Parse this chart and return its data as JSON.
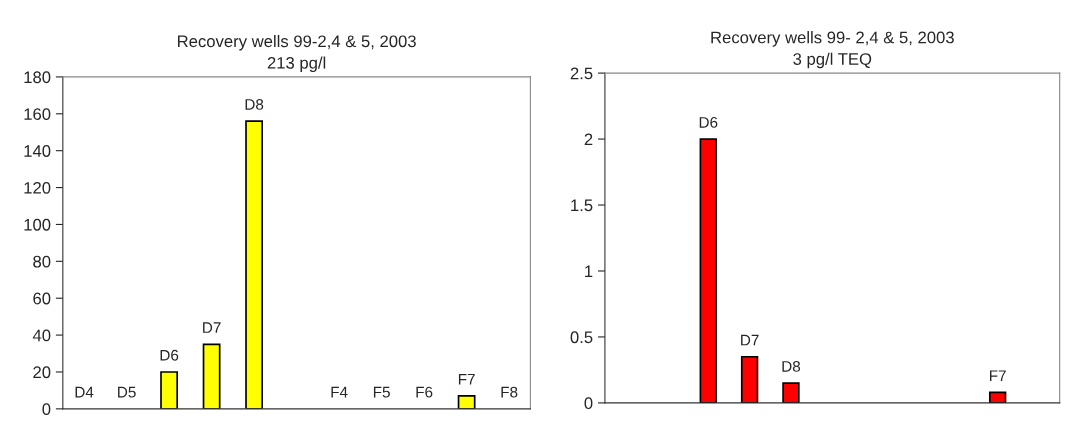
{
  "chart_data": [
    {
      "type": "bar",
      "title": "Recovery wells 99-2,4 & 5, 2003",
      "subtitle": "213 pg/l",
      "categories": [
        null,
        null,
        null,
        null,
        null,
        null,
        null,
        null,
        null,
        null,
        null
      ],
      "series": [
        {
          "color": "#ffff00",
          "values": [
            0,
            0,
            20,
            35,
            156,
            0,
            0,
            0,
            0,
            7,
            0
          ],
          "value_labels": [
            "D4",
            "D5",
            "D6",
            "D7",
            "D8",
            null,
            "F4",
            "F5",
            "F6",
            "F7",
            "F8"
          ]
        }
      ],
      "ylim": [
        0,
        180
      ],
      "yticks": [
        0,
        20,
        40,
        60,
        80,
        100,
        120,
        140,
        160,
        180
      ],
      "grid": false,
      "tick_labels": "y"
    },
    {
      "type": "bar",
      "title": "Recovery wells 99- 2,4 & 5, 2003",
      "subtitle": "3 pg/l TEQ",
      "categories": [
        null,
        null,
        null,
        null,
        null,
        null,
        null,
        null,
        null,
        null,
        null
      ],
      "series": [
        {
          "color": "#ff0000",
          "values": [
            0,
            0,
            2.0,
            0.35,
            0.15,
            0,
            0,
            0,
            0,
            0.08,
            0
          ],
          "value_labels": [
            null,
            null,
            "D6",
            "D7",
            "D8",
            null,
            null,
            null,
            null,
            "F7",
            null
          ]
        }
      ],
      "ylim": [
        0,
        2.5
      ],
      "yticks": [
        0,
        0.5,
        1,
        1.5,
        2,
        2.5
      ],
      "grid": false,
      "tick_labels": "y"
    }
  ]
}
